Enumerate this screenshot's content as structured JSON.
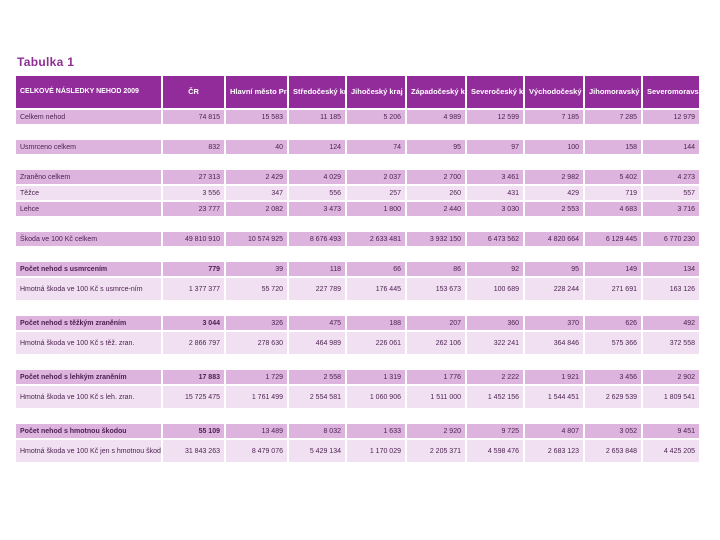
{
  "caption": "Tabulka 1",
  "table": {
    "headers": [
      "CELKOVÉ NÁSLEDKY NEHOD 2009",
      "ČR",
      "Hlavní město Praha",
      "Středočeský kraj",
      "Jihočeský kraj",
      "Západočeský kraj",
      "Severočeský kraj",
      "Východočeský kraj",
      "Jihomoravský kraj",
      "Severomoravský kraj"
    ],
    "groups": [
      {
        "rows": [
          {
            "label": "Celkem nehod",
            "values": [
              "74 815",
              "15 583",
              "11 185",
              "5 206",
              "4 989",
              "12 599",
              "7 185",
              "7 285",
              "12 979"
            ]
          }
        ]
      },
      {
        "rows": [
          {
            "label": "Usmrceno celkem",
            "values": [
              "832",
              "40",
              "124",
              "74",
              "95",
              "97",
              "100",
              "158",
              "144"
            ]
          }
        ]
      },
      {
        "rows": [
          {
            "label": "Zraněno celkem",
            "values": [
              "27 313",
              "2 429",
              "4 029",
              "2 037",
              "2 700",
              "3 461",
              "2 982",
              "5 402",
              "4 273"
            ]
          },
          {
            "label": "Těžce",
            "values": [
              "3 556",
              "347",
              "556",
              "257",
              "260",
              "431",
              "429",
              "719",
              "557"
            ]
          },
          {
            "label": "Lehce",
            "values": [
              "23 777",
              "2 082",
              "3 473",
              "1 800",
              "2 440",
              "3 030",
              "2 553",
              "4 683",
              "3 716"
            ]
          }
        ]
      },
      {
        "rows": [
          {
            "label": "Škoda ve 100 Kč celkem",
            "values": [
              "49 810 910",
              "10 574 925",
              "8 676 493",
              "2 633 481",
              "3 932 150",
              "6 473 562",
              "4 820 664",
              "6 129 445",
              "6 770 230"
            ]
          }
        ]
      },
      {
        "rows": [
          {
            "label": "Počet nehod s usmrcením",
            "values": [
              "779",
              "39",
              "118",
              "66",
              "86",
              "92",
              "95",
              "149",
              "134"
            ],
            "bold": true
          },
          {
            "label": "Hmotná škoda ve 100 Kč s usmrce-ním",
            "values": [
              "1 377 377",
              "55 720",
              "227 789",
              "176 445",
              "153 673",
              "100 689",
              "228 244",
              "271 691",
              "163 126"
            ]
          }
        ]
      },
      {
        "rows": [
          {
            "label": "Počet nehod s těžkým zraněním",
            "values": [
              "3 044",
              "326",
              "475",
              "188",
              "207",
              "360",
              "370",
              "626",
              "492"
            ],
            "bold": true
          },
          {
            "label": "Hmotná škoda ve 100 Kč s těž. zran.",
            "values": [
              "2 866 797",
              "278 630",
              "464 989",
              "226 061",
              "262 106",
              "322 241",
              "364 846",
              "575 366",
              "372 558"
            ]
          }
        ]
      },
      {
        "rows": [
          {
            "label": "Počet nehod s lehkým zraněním",
            "values": [
              "17 883",
              "1 729",
              "2 558",
              "1 319",
              "1 776",
              "2 222",
              "1 921",
              "3 456",
              "2 902"
            ],
            "bold": true
          },
          {
            "label": "Hmotná škoda ve 100 Kč s leh. zran.",
            "values": [
              "15 725 475",
              "1 761 499",
              "2 554 581",
              "1 060 906",
              "1 511 000",
              "1 452 156",
              "1 544 451",
              "2 629 539",
              "1 809 541"
            ]
          }
        ]
      },
      {
        "rows": [
          {
            "label": "Počet nehod s hmotnou škodou",
            "values": [
              "55 109",
              "13 489",
              "8 032",
              "1 633",
              "2 920",
              "9 725",
              "4 807",
              "3 052",
              "9 451"
            ],
            "bold": true
          },
          {
            "label": "Hmotná škoda ve 100 Kč jen s hmotnou škodou",
            "values": [
              "31 843 263",
              "8 479 076",
              "5 429 134",
              "1 170 029",
              "2 205 371",
              "4 598 476",
              "2 683 123",
              "2 653 848",
              "4 425 205"
            ]
          }
        ]
      }
    ]
  }
}
